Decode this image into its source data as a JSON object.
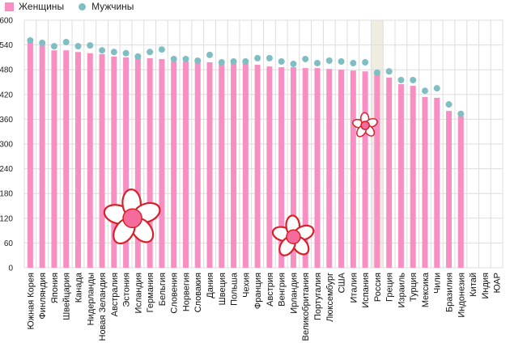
{
  "chart_data": {
    "type": "bar",
    "title": "",
    "xlabel": "",
    "ylabel": "",
    "ylim": [
      0,
      600
    ],
    "yticks": [
      0,
      60,
      120,
      180,
      240,
      300,
      360,
      420,
      480,
      540,
      600
    ],
    "grid": true,
    "legend_position": "top-left",
    "highlight_category": "Россия",
    "categories": [
      "Южная Корея",
      "Финляндия",
      "Япония",
      "Швейцария",
      "Канада",
      "Нидерланды",
      "Новая Зеландия",
      "Австралия",
      "Эстония",
      "Исландия",
      "Германия",
      "Бельгия",
      "Словения",
      "Норвегия",
      "Словакия",
      "Дания",
      "Швеция",
      "Польша",
      "Чехия",
      "Франция",
      "Австрия",
      "Венгрия",
      "Ирландия",
      "Великобритания",
      "Португалия",
      "Люксембург",
      "США",
      "Италия",
      "Испания",
      "Россия",
      "Греция",
      "Израиль",
      "Турция",
      "Мексика",
      "Чили",
      "Бразилия",
      "Индонезия",
      "Китай",
      "Индия",
      "ЮАР"
    ],
    "series": [
      {
        "name": "Женщины",
        "kind": "bar",
        "color": "#f78fc3",
        "values": [
          547,
          539,
          527,
          527,
          523,
          520,
          518,
          512,
          510,
          508,
          508,
          506,
          500,
          500,
          498,
          498,
          496,
          496,
          496,
          492,
          488,
          486,
          486,
          484,
          484,
          482,
          480,
          478,
          476,
          473,
          461,
          445,
          441,
          414,
          412,
          380,
          367,
          null,
          null,
          null
        ]
      },
      {
        "name": "Мужчины",
        "kind": "dot",
        "color": "#7fbfc4",
        "values": [
          551,
          545,
          537,
          547,
          537,
          539,
          527,
          523,
          520,
          512,
          523,
          529,
          506,
          506,
          502,
          516,
          498,
          500,
          500,
          508,
          508,
          500,
          494,
          506,
          496,
          502,
          500,
          496,
          498,
          473,
          476,
          455,
          455,
          429,
          435,
          396,
          373,
          null,
          null,
          null
        ]
      }
    ]
  },
  "legend": {
    "women_label": "Женщины",
    "men_label": "Мужчины"
  },
  "decorations": [
    {
      "name": "flower",
      "near": "Эстония",
      "value": 120,
      "size": "large"
    },
    {
      "name": "flower",
      "near": "Ирландия",
      "value": 75,
      "size": "medium"
    },
    {
      "name": "flower",
      "near": "Испания",
      "value": 345,
      "size": "small"
    }
  ]
}
